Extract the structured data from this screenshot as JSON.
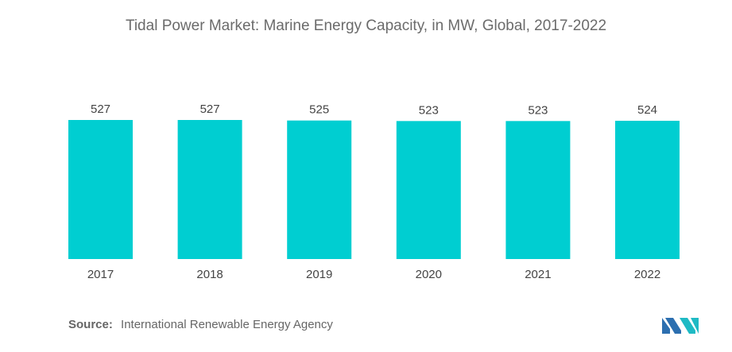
{
  "title": "Tidal Power Market: Marine Energy Capacity, in MW, Global, 2017-2022",
  "source": {
    "label": "Source:",
    "text": "International Renewable Energy Agency"
  },
  "colors": {
    "bar": "#00CED1",
    "logo_left": "#2c6fb0",
    "logo_right": "#1fbac4"
  },
  "chart_data": {
    "type": "bar",
    "title": "Tidal Power Market: Marine Energy Capacity, in MW, Global, 2017-2022",
    "xlabel": "",
    "ylabel": "",
    "categories": [
      "2017",
      "2018",
      "2019",
      "2020",
      "2021",
      "2022"
    ],
    "values": [
      527,
      527,
      525,
      523,
      523,
      524
    ],
    "data_labels": [
      "527",
      "527",
      "525",
      "523",
      "523",
      "524"
    ],
    "ylim": [
      0,
      527
    ],
    "grid": false,
    "legend": "none"
  }
}
